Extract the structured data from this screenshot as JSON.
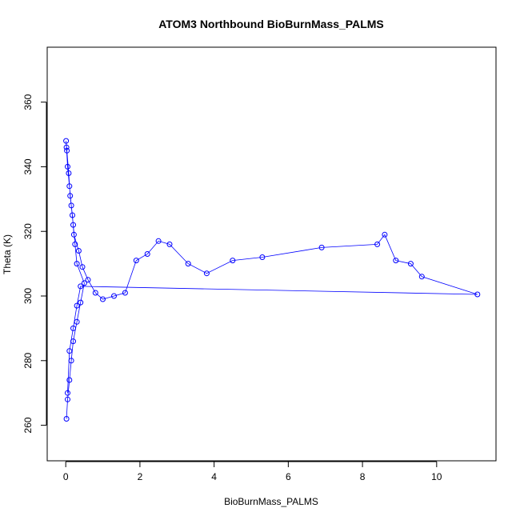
{
  "chart_data": {
    "type": "scatter",
    "title": "ATOM3 Northbound BioBurnMass_PALMS",
    "xlabel": "BioBurnMass_PALMS",
    "ylabel": "Theta (K)",
    "xlim": [
      -0.5,
      11.6
    ],
    "ylim": [
      249,
      377
    ],
    "xticks": [
      0,
      2,
      4,
      6,
      8,
      10
    ],
    "yticks": [
      260,
      280,
      300,
      320,
      340,
      360
    ],
    "grid": false,
    "legend": "none",
    "colors": {
      "series": "#0000ff",
      "axes": "#000000"
    },
    "series": [
      {
        "style": "points-and-lines",
        "x": [
          0.02,
          0.05,
          0.1,
          0.15,
          0.2,
          0.3,
          0.4,
          0.5,
          0.3,
          0.25,
          0.2,
          0.15,
          0.1,
          0.05,
          0.02,
          0.01,
          0.03,
          0.08,
          0.12,
          0.18,
          0.22,
          0.35,
          0.45,
          0.6,
          0.8,
          1.0,
          1.3,
          1.6,
          1.9,
          2.2,
          2.5,
          2.8,
          3.3,
          3.8,
          4.5,
          5.3,
          6.9,
          8.4,
          8.6,
          8.9,
          9.3,
          9.6,
          11.1,
          0.4,
          0.3,
          0.2,
          0.1,
          0.05
        ],
        "y": [
          262,
          268,
          274,
          280,
          286,
          292,
          298,
          304,
          310,
          316,
          322,
          328,
          334,
          340,
          346,
          348,
          345,
          338,
          331,
          325,
          319,
          314,
          309,
          305,
          301,
          299,
          300,
          301,
          311,
          313,
          317,
          316,
          310,
          307,
          311,
          312,
          315,
          316,
          319,
          311,
          310,
          306,
          300.5,
          303,
          297,
          290,
          283,
          270
        ]
      }
    ]
  }
}
